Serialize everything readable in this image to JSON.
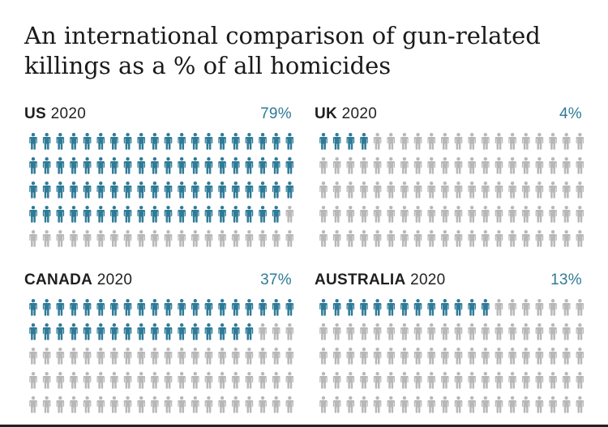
{
  "title": "An international comparison of gun-related killings as a % of all homicides",
  "colors": {
    "highlight": "#2f7b97",
    "muted": "#b8b8b8",
    "text": "#222222"
  },
  "chart_data": [
    {
      "type": "pictogram",
      "country": "US",
      "year": "2020",
      "percent_label": "79%",
      "value": 79,
      "total": 100,
      "rows": 5,
      "cols": 20
    },
    {
      "type": "pictogram",
      "country": "UK",
      "year": "2020",
      "percent_label": "4%",
      "value": 4,
      "total": 100,
      "rows": 5,
      "cols": 20
    },
    {
      "type": "pictogram",
      "country": "CANADA",
      "year": "2020",
      "percent_label": "37%",
      "value": 37,
      "total": 100,
      "rows": 5,
      "cols": 20
    },
    {
      "type": "pictogram",
      "country": "AUSTRALIA",
      "year": "2020",
      "percent_label": "13%",
      "value": 13,
      "total": 100,
      "rows": 5,
      "cols": 20
    }
  ]
}
